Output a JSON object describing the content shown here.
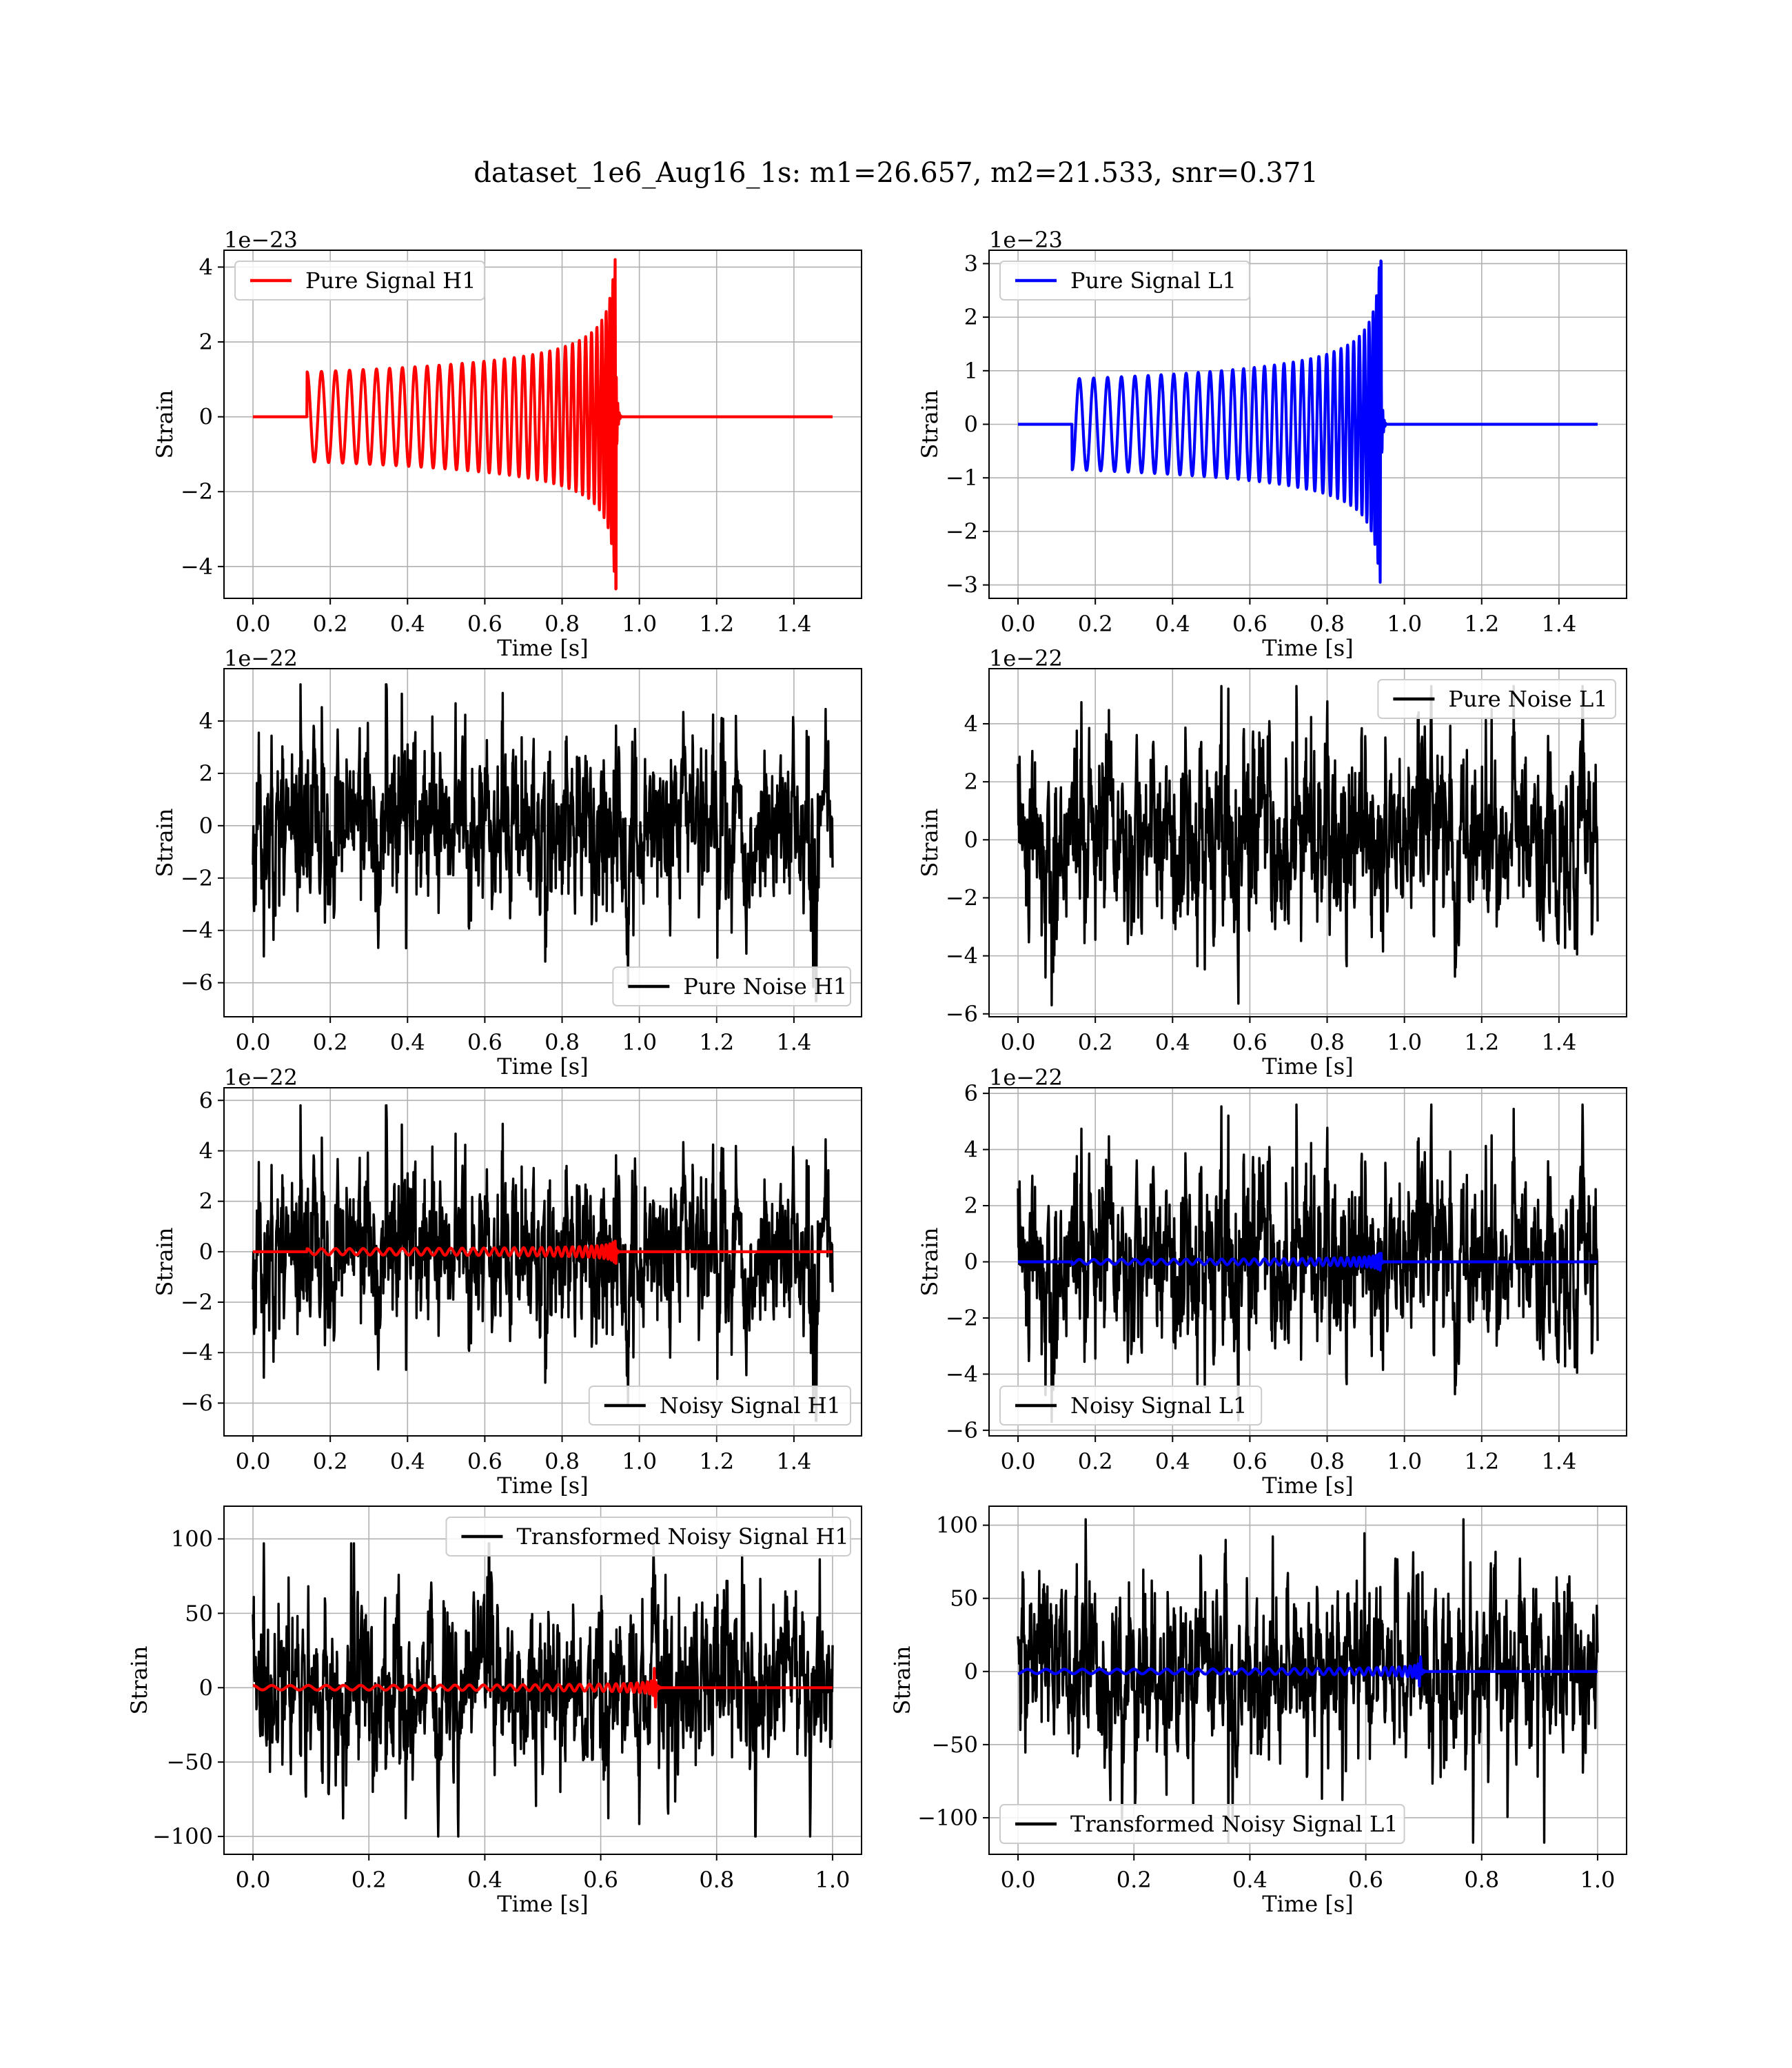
{
  "figure": {
    "suptitle": "dataset_1e6_Aug16_1s: m1=26.657, m2=21.533, snr=0.371"
  },
  "chart_data": [
    {
      "type": "line",
      "panel": "pure-signal-h1",
      "xlabel": "Time [s]",
      "ylabel": "Strain",
      "offset_text": "1e−23",
      "xlim": [
        -0.075,
        1.575
      ],
      "ylim": [
        -4.85,
        4.45
      ],
      "xticks": [
        0.0,
        0.2,
        0.4,
        0.6,
        0.8,
        1.0,
        1.2,
        1.4
      ],
      "xtick_labels": [
        "0.0",
        "0.2",
        "0.4",
        "0.6",
        "0.8",
        "1.0",
        "1.2",
        "1.4"
      ],
      "yticks": [
        -4,
        -2,
        0,
        2,
        4
      ],
      "ytick_labels": [
        "−4",
        "−2",
        "0",
        "2",
        "4"
      ],
      "grid": true,
      "legend_position": "upper left",
      "series": [
        {
          "name": "Pure Signal H1",
          "color": "#ff0000",
          "kind": "chirp",
          "x_range": [
            0.0,
            1.5
          ],
          "t_start": 0.14,
          "t_merge": 0.94,
          "amp_start": 1.2,
          "amp_peak": 4.2,
          "amp_min": -4.6,
          "cycles": 34,
          "phase_sign": 1
        }
      ]
    },
    {
      "type": "line",
      "panel": "pure-signal-l1",
      "xlabel": "Time [s]",
      "ylabel": "Strain",
      "offset_text": "1e−23",
      "xlim": [
        -0.075,
        1.575
      ],
      "ylim": [
        -3.25,
        3.25
      ],
      "xticks": [
        0.0,
        0.2,
        0.4,
        0.6,
        0.8,
        1.0,
        1.2,
        1.4
      ],
      "xtick_labels": [
        "0.0",
        "0.2",
        "0.4",
        "0.6",
        "0.8",
        "1.0",
        "1.2",
        "1.4"
      ],
      "yticks": [
        -3,
        -2,
        -1,
        0,
        1,
        2,
        3
      ],
      "ytick_labels": [
        "−3",
        "−2",
        "−1",
        "0",
        "1",
        "2",
        "3"
      ],
      "grid": true,
      "legend_position": "upper left",
      "series": [
        {
          "name": "Pure Signal L1",
          "color": "#0000ff",
          "kind": "chirp",
          "x_range": [
            0.0,
            1.5
          ],
          "t_start": 0.14,
          "t_merge": 0.94,
          "amp_start": 0.85,
          "amp_peak": 3.05,
          "amp_min": -2.95,
          "cycles": 34,
          "phase_sign": -1
        }
      ]
    },
    {
      "type": "line",
      "panel": "pure-noise-h1",
      "xlabel": "Time [s]",
      "ylabel": "Strain",
      "offset_text": "1e−22",
      "xlim": [
        -0.075,
        1.575
      ],
      "ylim": [
        -7.3,
        6.0
      ],
      "xticks": [
        0.0,
        0.2,
        0.4,
        0.6,
        0.8,
        1.0,
        1.2,
        1.4
      ],
      "xtick_labels": [
        "0.0",
        "0.2",
        "0.4",
        "0.6",
        "0.8",
        "1.0",
        "1.2",
        "1.4"
      ],
      "yticks": [
        -6,
        -4,
        -2,
        0,
        2,
        4
      ],
      "ytick_labels": [
        "−6",
        "−4",
        "−2",
        "0",
        "2",
        "4"
      ],
      "grid": true,
      "legend_position": "lower right",
      "series": [
        {
          "name": "Pure Noise H1",
          "color": "#000000",
          "kind": "noise",
          "x_range": [
            0.0,
            1.5
          ],
          "sigma": 1.55,
          "min": -6.7,
          "max": 5.4,
          "seed": 11
        }
      ]
    },
    {
      "type": "line",
      "panel": "pure-noise-l1",
      "xlabel": "Time [s]",
      "ylabel": "Strain",
      "offset_text": "1e−22",
      "xlim": [
        -0.075,
        1.575
      ],
      "ylim": [
        -6.1,
        5.9
      ],
      "xticks": [
        0.0,
        0.2,
        0.4,
        0.6,
        0.8,
        1.0,
        1.2,
        1.4
      ],
      "xtick_labels": [
        "0.0",
        "0.2",
        "0.4",
        "0.6",
        "0.8",
        "1.0",
        "1.2",
        "1.4"
      ],
      "yticks": [
        -6,
        -4,
        -2,
        0,
        2,
        4
      ],
      "ytick_labels": [
        "−6",
        "−4",
        "−2",
        "0",
        "2",
        "4"
      ],
      "grid": true,
      "legend_position": "upper right",
      "series": [
        {
          "name": "Pure Noise L1",
          "color": "#000000",
          "kind": "noise",
          "x_range": [
            0.0,
            1.5
          ],
          "sigma": 1.55,
          "min": -5.7,
          "max": 5.3,
          "seed": 23
        }
      ]
    },
    {
      "type": "line",
      "panel": "noisy-signal-h1",
      "xlabel": "Time [s]",
      "ylabel": "Strain",
      "offset_text": "1e−22",
      "xlim": [
        -0.075,
        1.575
      ],
      "ylim": [
        -7.3,
        6.5
      ],
      "xticks": [
        0.0,
        0.2,
        0.4,
        0.6,
        0.8,
        1.0,
        1.2,
        1.4
      ],
      "xtick_labels": [
        "0.0",
        "0.2",
        "0.4",
        "0.6",
        "0.8",
        "1.0",
        "1.2",
        "1.4"
      ],
      "yticks": [
        -6,
        -4,
        -2,
        0,
        2,
        4,
        6
      ],
      "ytick_labels": [
        "−6",
        "−4",
        "−2",
        "0",
        "2",
        "4",
        "6"
      ],
      "grid": true,
      "legend_position": "lower right",
      "series": [
        {
          "name": "Noisy Signal H1",
          "color": "#000000",
          "kind": "noise",
          "x_range": [
            0.0,
            1.5
          ],
          "sigma": 1.55,
          "min": -6.7,
          "max": 5.8,
          "seed": 11
        },
        {
          "name": "",
          "color": "#ff0000",
          "kind": "chirp",
          "x_range": [
            0.0,
            1.5
          ],
          "t_start": 0.14,
          "t_merge": 0.94,
          "amp_start": 0.12,
          "amp_peak": 0.42,
          "amp_min": -0.46,
          "cycles": 34,
          "phase_sign": 1
        }
      ]
    },
    {
      "type": "line",
      "panel": "noisy-signal-l1",
      "xlabel": "Time [s]",
      "ylabel": "Strain",
      "offset_text": "1e−22",
      "xlim": [
        -0.075,
        1.575
      ],
      "ylim": [
        -6.2,
        6.2
      ],
      "xticks": [
        0.0,
        0.2,
        0.4,
        0.6,
        0.8,
        1.0,
        1.2,
        1.4
      ],
      "xtick_labels": [
        "0.0",
        "0.2",
        "0.4",
        "0.6",
        "0.8",
        "1.0",
        "1.2",
        "1.4"
      ],
      "yticks": [
        -6,
        -4,
        -2,
        0,
        2,
        4,
        6
      ],
      "ytick_labels": [
        "−6",
        "−4",
        "−2",
        "0",
        "2",
        "4",
        "6"
      ],
      "grid": true,
      "legend_position": "lower left",
      "series": [
        {
          "name": "Noisy Signal L1",
          "color": "#000000",
          "kind": "noise",
          "x_range": [
            0.0,
            1.5
          ],
          "sigma": 1.55,
          "min": -5.7,
          "max": 5.6,
          "seed": 23
        },
        {
          "name": "",
          "color": "#0000ff",
          "kind": "chirp",
          "x_range": [
            0.0,
            1.5
          ],
          "t_start": 0.14,
          "t_merge": 0.94,
          "amp_start": 0.085,
          "amp_peak": 0.3,
          "amp_min": -0.3,
          "cycles": 34,
          "phase_sign": -1
        }
      ]
    },
    {
      "type": "line",
      "panel": "transformed-h1",
      "xlabel": "Time [s]",
      "ylabel": "Strain",
      "offset_text": "",
      "xlim": [
        -0.05,
        1.05
      ],
      "ylim": [
        -112,
        122
      ],
      "xticks": [
        0.0,
        0.2,
        0.4,
        0.6,
        0.8,
        1.0
      ],
      "xtick_labels": [
        "0.0",
        "0.2",
        "0.4",
        "0.6",
        "0.8",
        "1.0"
      ],
      "yticks": [
        -100,
        -50,
        0,
        50,
        100
      ],
      "ytick_labels": [
        "−100",
        "−50",
        "0",
        "50",
        "100"
      ],
      "grid": true,
      "legend_position": "upper right",
      "series": [
        {
          "name": "Transformed Noisy Signal H1",
          "color": "#000000",
          "kind": "noise",
          "x_range": [
            0.0,
            1.0
          ],
          "sigma": 28,
          "min": -100,
          "max": 97,
          "seed": 37
        },
        {
          "name": "",
          "color": "#ff0000",
          "kind": "chirp",
          "x_range": [
            0.0,
            1.0
          ],
          "t_start": 0.0,
          "t_merge": 0.695,
          "amp_start": 1.5,
          "amp_peak": 13,
          "amp_min": -13,
          "cycles": 34,
          "phase_sign": 1
        }
      ]
    },
    {
      "type": "line",
      "panel": "transformed-l1",
      "xlabel": "Time [s]",
      "ylabel": "Strain",
      "offset_text": "",
      "xlim": [
        -0.05,
        1.05
      ],
      "ylim": [
        -125,
        113
      ],
      "xticks": [
        0.0,
        0.2,
        0.4,
        0.6,
        0.8,
        1.0
      ],
      "xtick_labels": [
        "0.0",
        "0.2",
        "0.4",
        "0.6",
        "0.8",
        "1.0"
      ],
      "yticks": [
        -100,
        -50,
        0,
        50,
        100
      ],
      "ytick_labels": [
        "−100",
        "−50",
        "0",
        "50",
        "100"
      ],
      "grid": true,
      "legend_position": "lower left",
      "series": [
        {
          "name": "Transformed Noisy Signal L1",
          "color": "#000000",
          "kind": "noise",
          "x_range": [
            0.0,
            1.0
          ],
          "sigma": 28,
          "min": -117,
          "max": 104,
          "seed": 53
        },
        {
          "name": "",
          "color": "#0000ff",
          "kind": "chirp",
          "x_range": [
            0.0,
            1.0
          ],
          "t_start": 0.0,
          "t_merge": 0.695,
          "amp_start": 1.5,
          "amp_peak": 10,
          "amp_min": -10,
          "cycles": 34,
          "phase_sign": -1
        }
      ]
    }
  ]
}
